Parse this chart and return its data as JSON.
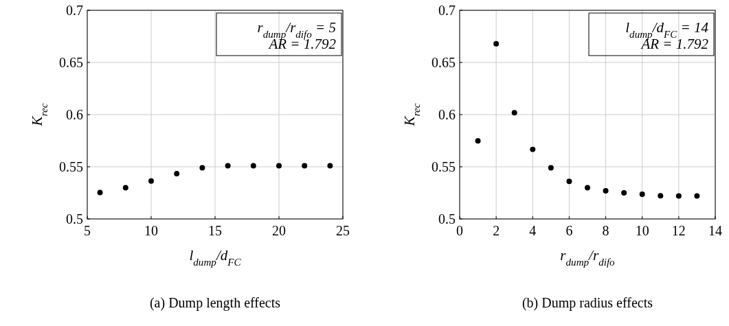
{
  "chart_data": [
    {
      "type": "scatter",
      "title": "(a) Dump length effects",
      "xlabel": "l$_{dump}$/d$_{FC}$",
      "ylabel": "K$_{rec}$",
      "x": [
        6,
        8,
        10,
        12,
        14,
        16,
        18,
        20,
        22,
        24
      ],
      "series": [
        {
          "color": "#000000",
          "values": [
            0.5254,
            0.53,
            0.5364,
            0.5434,
            0.549,
            0.551,
            0.551,
            0.551,
            0.551,
            0.551
          ]
        }
      ],
      "xlim": [
        5,
        25
      ],
      "xticks": [
        5,
        10,
        15,
        20,
        25
      ],
      "ylim": [
        0.5,
        0.7
      ],
      "yticks": [
        0.5,
        0.55,
        0.6,
        0.65,
        0.7
      ],
      "grid": true,
      "marker": "circle",
      "annotations": [
        "r$_{dump}$/r$_{difo}$ = 5",
        "AR = 1.792"
      ]
    },
    {
      "type": "scatter",
      "title": "(b) Dump radius effects",
      "xlabel": "r$_{dump}$/r$_{difo}$",
      "ylabel": "K$_{rec}$",
      "x": [
        1,
        2,
        3,
        4,
        5,
        6,
        7,
        8,
        9,
        10,
        11,
        12,
        13
      ],
      "series": [
        {
          "color": "#000000",
          "values": [
            0.5748,
            0.668,
            0.6018,
            0.5667,
            0.549,
            0.536,
            0.53,
            0.527,
            0.525,
            0.5237,
            0.5222,
            0.522,
            0.522
          ]
        }
      ],
      "xlim": [
        0,
        14
      ],
      "xticks": [
        0,
        2,
        4,
        6,
        8,
        10,
        12,
        14
      ],
      "ylim": [
        0.5,
        0.7
      ],
      "yticks": [
        0.5,
        0.55,
        0.6,
        0.65,
        0.7
      ],
      "grid": true,
      "marker": "circle",
      "annotations": [
        "l$_{dump}$/d$_{FC}$ = 14",
        "AR = 1.792"
      ]
    }
  ]
}
